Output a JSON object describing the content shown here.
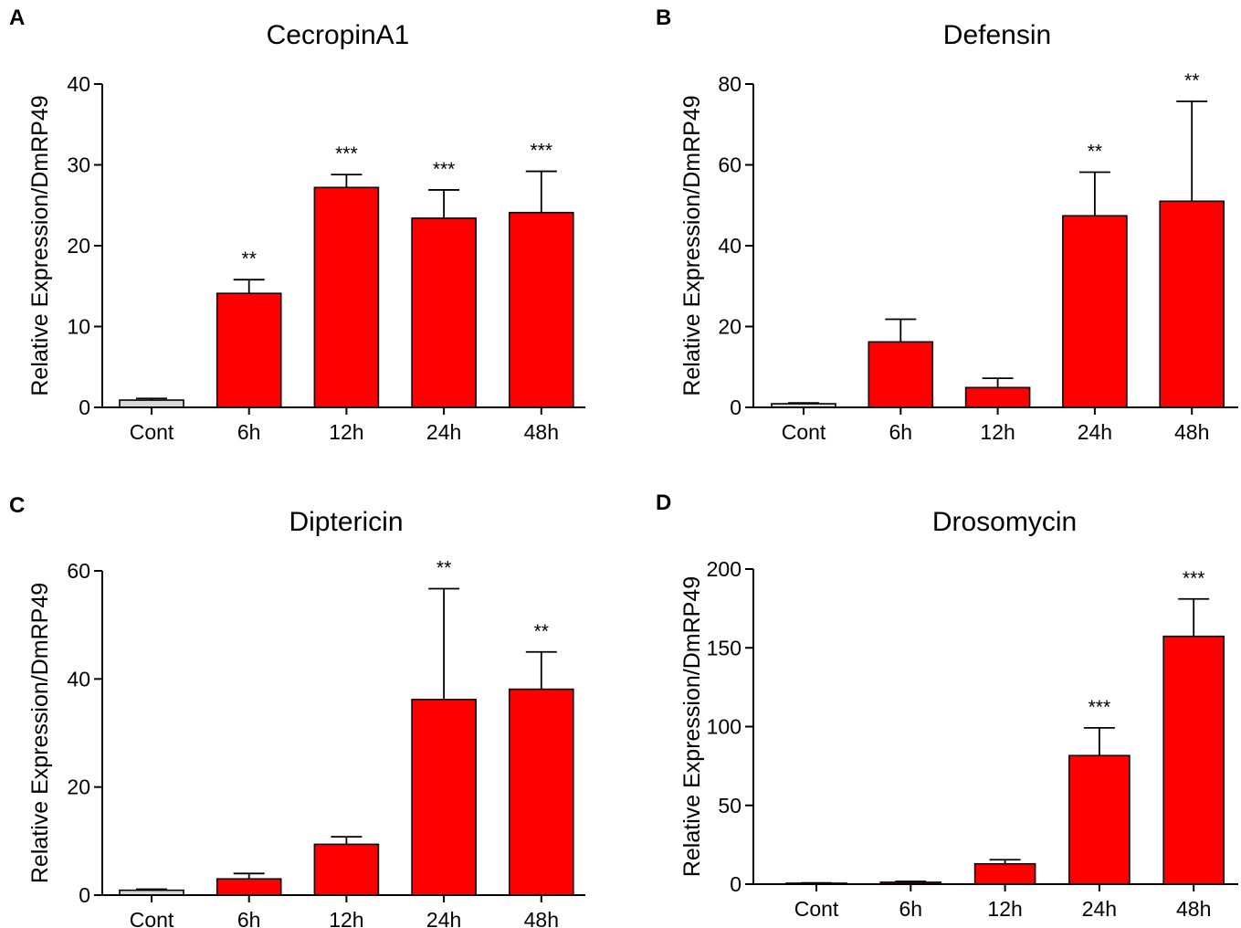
{
  "chart_data": [
    {
      "panel": "A",
      "type": "bar",
      "title": "CecropinA1",
      "ylabel": "Relative Expression/DmRP49",
      "xlabel": "",
      "categories": [
        "Cont",
        "6h",
        "12h",
        "24h",
        "48h"
      ],
      "values": [
        0.9,
        14.1,
        27.2,
        23.4,
        24.1
      ],
      "errors": [
        0.2,
        1.7,
        1.6,
        3.5,
        5.1
      ],
      "significance": [
        "",
        "**",
        "***",
        "***",
        "***"
      ],
      "yticks": [
        0,
        10,
        20,
        30,
        40
      ],
      "ylim": [
        0,
        40
      ],
      "colors": [
        "#d9d9d9",
        "#ff0000",
        "#ff0000",
        "#ff0000",
        "#ff0000"
      ]
    },
    {
      "panel": "B",
      "type": "bar",
      "title": "Defensin",
      "ylabel": "Relative Expression/DmRP49",
      "xlabel": "",
      "categories": [
        "Cont",
        "6h",
        "12h",
        "24h",
        "48h"
      ],
      "values": [
        0.9,
        16.2,
        4.9,
        47.4,
        51.0
      ],
      "errors": [
        0.2,
        5.6,
        2.3,
        10.8,
        24.7
      ],
      "significance": [
        "",
        "",
        "",
        "**",
        "**"
      ],
      "yticks": [
        0,
        20,
        40,
        60,
        80
      ],
      "ylim": [
        0,
        80
      ],
      "colors": [
        "#d9d9d9",
        "#ff0000",
        "#ff0000",
        "#ff0000",
        "#ff0000"
      ]
    },
    {
      "panel": "C",
      "type": "bar",
      "title": "Diptericin",
      "ylabel": "Relative Expression/DmRP49",
      "xlabel": "",
      "categories": [
        "Cont",
        "6h",
        "12h",
        "24h",
        "48h"
      ],
      "values": [
        0.9,
        3.0,
        9.4,
        36.2,
        38.1
      ],
      "errors": [
        0.2,
        1.0,
        1.4,
        20.5,
        6.9
      ],
      "significance": [
        "",
        "",
        "",
        "**",
        "**"
      ],
      "yticks": [
        0,
        20,
        40,
        60
      ],
      "ylim": [
        0,
        60
      ],
      "colors": [
        "#d9d9d9",
        "#ff0000",
        "#ff0000",
        "#ff0000",
        "#ff0000"
      ]
    },
    {
      "panel": "D",
      "type": "bar",
      "title": "Drosomycin",
      "ylabel": "Relative Expression/DmRP49",
      "xlabel": "",
      "categories": [
        "Cont",
        "6h",
        "12h",
        "24h",
        "48h"
      ],
      "values": [
        0.6,
        1.2,
        12.9,
        81.6,
        157.3
      ],
      "errors": [
        0.2,
        0.5,
        2.6,
        17.6,
        23.7
      ],
      "significance": [
        "",
        "",
        "",
        "***",
        "***"
      ],
      "yticks": [
        0,
        50,
        100,
        150,
        200
      ],
      "ylim": [
        0,
        200
      ],
      "colors": [
        "#d9d9d9",
        "#ff0000",
        "#ff0000",
        "#ff0000",
        "#ff0000"
      ]
    }
  ]
}
